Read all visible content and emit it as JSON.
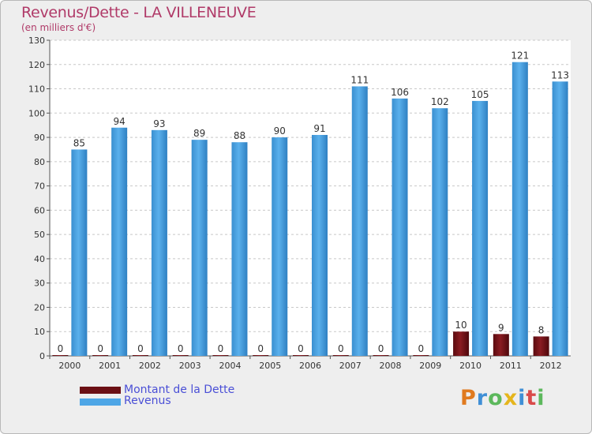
{
  "title": "Revenus/Dette - LA VILLENEUVE",
  "subtitle": "(en milliers d'€)",
  "logo": {
    "letters": [
      "P",
      "r",
      "o",
      "x",
      "i",
      "t",
      "i"
    ],
    "colors": [
      "#e07a1f",
      "#3f8fd6",
      "#5cb85c",
      "#e5b51c",
      "#3f8fd6",
      "#d94a4a",
      "#5cb85c"
    ]
  },
  "colors": {
    "dette": "#6b0f14",
    "revenus": "#4ea6e6",
    "title": "#b03a68",
    "legend_text": "#4a4fd6"
  },
  "chart_data": {
    "type": "bar",
    "categories": [
      "2000",
      "2001",
      "2002",
      "2003",
      "2004",
      "2005",
      "2006",
      "2007",
      "2008",
      "2009",
      "2010",
      "2011",
      "2012"
    ],
    "series": [
      {
        "name": "Montant de la Dette",
        "values": [
          0,
          0,
          0,
          0,
          0,
          0,
          0,
          0,
          0,
          0,
          10,
          9,
          8
        ]
      },
      {
        "name": "Revenus",
        "values": [
          85,
          94,
          93,
          89,
          88,
          90,
          91,
          111,
          106,
          102,
          105,
          121,
          113
        ]
      }
    ],
    "ylim": [
      0,
      130
    ],
    "yticks": [
      0,
      10,
      20,
      30,
      40,
      50,
      60,
      70,
      80,
      90,
      100,
      110,
      120,
      130
    ],
    "grid": "horizontal-dashed",
    "legend": "bottom-left"
  }
}
